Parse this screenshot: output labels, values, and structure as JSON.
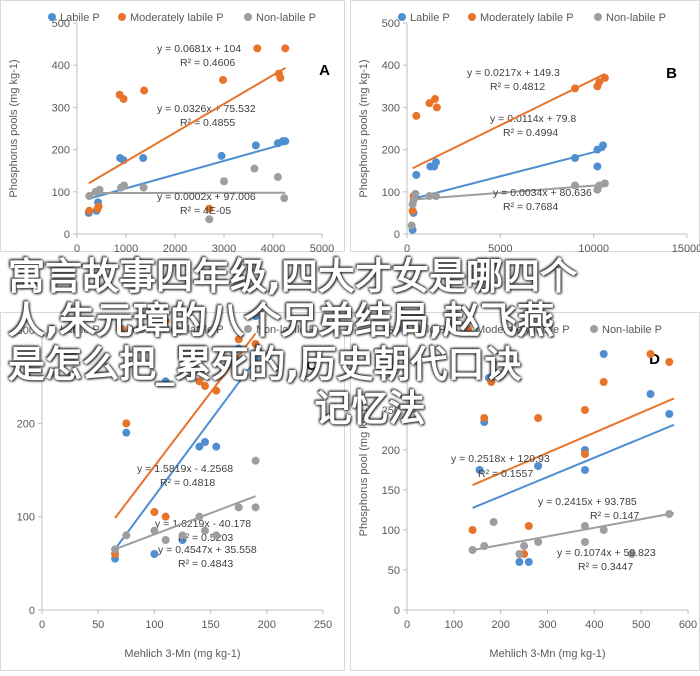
{
  "colors": {
    "labile": "#4f8fd1",
    "moderately": "#e8742b",
    "nonlabile": "#9e9e9e",
    "axis": "#bfbfbf",
    "text": "#595959"
  },
  "legend": [
    "Labile P",
    "Moderately labile P",
    "Non-labile P"
  ],
  "overlay": {
    "lines": [
      "寓言故事四年级,四大才女是哪四个",
      "人,朱元璋的八个兄弟结局,赵飞燕",
      "是怎么把_累死的,历史朝代口诀",
      "记忆法"
    ]
  },
  "chart_data": [
    {
      "type": "scatter",
      "panel_label": "A",
      "xlabel": "",
      "ylabel": "Phosphorus pools (mg kg-1)",
      "xlim": [
        0,
        5000
      ],
      "ylim": [
        0,
        500
      ],
      "xticks": [
        "0",
        "1000",
        "2000",
        "3000",
        "4000",
        "5000"
      ],
      "yticks": [
        "0",
        "100",
        "200",
        "300",
        "400",
        "500"
      ],
      "series": [
        {
          "name": "Labile P",
          "points": [
            [
              240,
              50
            ],
            [
              400,
              55
            ],
            [
              430,
              75
            ],
            [
              880,
              180
            ],
            [
              950,
              175
            ],
            [
              1350,
              180
            ],
            [
              2950,
              185
            ],
            [
              3650,
              210
            ],
            [
              4100,
              215
            ],
            [
              4200,
              220
            ],
            [
              4250,
              220
            ]
          ],
          "fit": {
            "slope": 0.0326,
            "intercept": 75.532,
            "x": [
              240,
              4250
            ],
            "eq": "y = 0.0326x + 75.532",
            "r2": "R² = 0.4855"
          }
        },
        {
          "name": "Moderately labile P",
          "points": [
            [
              250,
              55
            ],
            [
              420,
              60
            ],
            [
              440,
              65
            ],
            [
              870,
              330
            ],
            [
              950,
              320
            ],
            [
              1370,
              340
            ],
            [
              2700,
              60
            ],
            [
              2980,
              365
            ],
            [
              3680,
              440
            ],
            [
              4120,
              380
            ],
            [
              4150,
              370
            ],
            [
              4250,
              440
            ]
          ],
          "fit": {
            "slope": 0.0681,
            "intercept": 104,
            "x": [
              240,
              4250
            ],
            "eq": "y = 0.0681x + 104",
            "r2": "R² = 0.4606"
          }
        },
        {
          "name": "Non-labile P",
          "points": [
            [
              250,
              90
            ],
            [
              380,
              100
            ],
            [
              430,
              100
            ],
            [
              460,
              105
            ],
            [
              900,
              110
            ],
            [
              960,
              115
            ],
            [
              1360,
              110
            ],
            [
              2700,
              35
            ],
            [
              3000,
              125
            ],
            [
              3620,
              155
            ],
            [
              4100,
              135
            ],
            [
              4230,
              85
            ]
          ],
          "fit": {
            "slope": 0.0002,
            "intercept": 97.006,
            "x": [
              240,
              4250
            ],
            "eq": "y = 0.0002x + 97.006",
            "r2": "R² = 4E-05"
          }
        }
      ]
    },
    {
      "type": "scatter",
      "panel_label": "B",
      "xlabel": "",
      "ylabel": "Phosphorus pools (mg kg-1)",
      "xlim": [
        0,
        15000
      ],
      "ylim": [
        0,
        500
      ],
      "xticks": [
        "0",
        "5000",
        "10000",
        "15000"
      ],
      "yticks": [
        "0",
        "100",
        "200",
        "300",
        "400",
        "500"
      ],
      "series": [
        {
          "name": "Labile P",
          "points": [
            [
              300,
              10
            ],
            [
              350,
              50
            ],
            [
              500,
              140
            ],
            [
              1250,
              160
            ],
            [
              1450,
              160
            ],
            [
              1550,
              170
            ],
            [
              9000,
              180
            ],
            [
              10200,
              160
            ],
            [
              10200,
              200
            ],
            [
              10500,
              210
            ]
          ],
          "fit": {
            "slope": 0.0114,
            "intercept": 79.8,
            "x": [
              300,
              10600
            ],
            "eq": "y = 0.0114x + 79.8",
            "r2": "R² = 0.4994"
          }
        },
        {
          "name": "Moderately labile P",
          "points": [
            [
              300,
              55
            ],
            [
              350,
              90
            ],
            [
              500,
              280
            ],
            [
              1200,
              310
            ],
            [
              1500,
              320
            ],
            [
              1600,
              300
            ],
            [
              9000,
              345
            ],
            [
              10200,
              350
            ],
            [
              10300,
              360
            ],
            [
              10600,
              370
            ]
          ],
          "fit": {
            "slope": 0.0217,
            "intercept": 149.3,
            "x": [
              300,
              10600
            ],
            "eq": "y = 0.0217x + 149.3",
            "r2": "R² = 0.4812"
          }
        },
        {
          "name": "Non-labile P",
          "points": [
            [
              250,
              20
            ],
            [
              300,
              70
            ],
            [
              350,
              80
            ],
            [
              450,
              95
            ],
            [
              1200,
              90
            ],
            [
              1550,
              90
            ],
            [
              9000,
              115
            ],
            [
              10200,
              105
            ],
            [
              10300,
              115
            ],
            [
              10600,
              120
            ]
          ],
          "fit": {
            "slope": 0.0034,
            "intercept": 80.636,
            "x": [
              250,
              10600
            ],
            "eq": "y = 0.0034x + 80.636",
            "r2": "R² = 0.7684"
          }
        }
      ]
    },
    {
      "type": "scatter",
      "panel_label": "C",
      "xlabel": "Mehlich 3-Mn (mg kg-1)",
      "ylabel": "Phosphorus pool (mg kg-1)",
      "xlim": [
        0,
        250
      ],
      "ylim": [
        0,
        300
      ],
      "xticks": [
        "0",
        "50",
        "100",
        "150",
        "200",
        "250"
      ],
      "yticks": [
        "0",
        "100",
        "200",
        "300"
      ],
      "series": [
        {
          "name": "Labile P",
          "points": [
            [
              65,
              55
            ],
            [
              75,
              190
            ],
            [
              100,
              60
            ],
            [
              110,
              245
            ],
            [
              125,
              75
            ],
            [
              140,
              175
            ],
            [
              145,
              180
            ],
            [
              155,
              175
            ],
            [
              175,
              280
            ],
            [
              190,
              270
            ],
            [
              190,
              315
            ]
          ],
          "fit": {
            "slope": 1.6219,
            "intercept": -40.178,
            "x": [
              65,
              190
            ],
            "eq": "y = 1.6219x - 40.178",
            "r2": "R² = 0.5203"
          }
        },
        {
          "name": "Moderately labile P",
          "points": [
            [
              65,
              60
            ],
            [
              75,
              200
            ],
            [
              100,
              105
            ],
            [
              110,
              310
            ],
            [
              110,
              100
            ],
            [
              140,
              245
            ],
            [
              145,
              240
            ],
            [
              155,
              235
            ],
            [
              175,
              290
            ],
            [
              190,
              285
            ],
            [
              190,
              320
            ]
          ],
          "fit": {
            "slope": 1.5819,
            "intercept": -4.2568,
            "x": [
              65,
              190
            ],
            "eq": "y = 1.5819x - 4.2568",
            "r2": "R² = 0.4818"
          }
        },
        {
          "name": "Non-labile P",
          "points": [
            [
              65,
              65
            ],
            [
              75,
              80
            ],
            [
              100,
              85
            ],
            [
              110,
              75
            ],
            [
              125,
              80
            ],
            [
              140,
              100
            ],
            [
              145,
              85
            ],
            [
              155,
              80
            ],
            [
              175,
              110
            ],
            [
              190,
              160
            ],
            [
              190,
              110
            ]
          ],
          "fit": {
            "slope": 0.4547,
            "intercept": 35.558,
            "x": [
              65,
              190
            ],
            "eq": "y = 0.4547x + 35.558",
            "r2": "R² = 0.4843"
          }
        }
      ]
    },
    {
      "type": "scatter",
      "panel_label": "D",
      "xlabel": "Mehlich 3-Mn (mg kg-1)",
      "ylabel": "Phosphorus pool (mg kg-1)",
      "xlim": [
        0,
        600
      ],
      "ylim": [
        0,
        350
      ],
      "xticks": [
        "0",
        "100",
        "200",
        "300",
        "400",
        "500",
        "600"
      ],
      "yticks": [
        "0",
        "50",
        "100",
        "150",
        "200",
        "250",
        "300",
        "350"
      ],
      "series": [
        {
          "name": "Labile P",
          "points": [
            [
              155,
              175
            ],
            [
              165,
              235
            ],
            [
              175,
              290
            ],
            [
              240,
              60
            ],
            [
              260,
              60
            ],
            [
              280,
              180
            ],
            [
              380,
              175
            ],
            [
              380,
              200
            ],
            [
              420,
              320
            ],
            [
              520,
              270
            ],
            [
              560,
              245
            ]
          ],
          "fit": {
            "slope": 0.2415,
            "intercept": 93.785,
            "x": [
              140,
              570
            ],
            "eq": "y = 0.2415x + 93.785",
            "r2": "R² = 0.147"
          }
        },
        {
          "name": "Moderately labile P",
          "points": [
            [
              140,
              100
            ],
            [
              165,
              240
            ],
            [
              180,
              285
            ],
            [
              250,
              70
            ],
            [
              260,
              105
            ],
            [
              280,
              240
            ],
            [
              380,
              250
            ],
            [
              380,
              195
            ],
            [
              420,
              285
            ],
            [
              520,
              320
            ],
            [
              560,
              310
            ]
          ],
          "fit": {
            "slope": 0.2518,
            "intercept": 120.93,
            "x": [
              140,
              570
            ],
            "eq": "y = 0.2518x + 120.93",
            "r2": "R² = 0.1557"
          }
        },
        {
          "name": "Non-labile P",
          "points": [
            [
              140,
              75
            ],
            [
              165,
              80
            ],
            [
              185,
              110
            ],
            [
              240,
              70
            ],
            [
              250,
              80
            ],
            [
              280,
              85
            ],
            [
              380,
              85
            ],
            [
              380,
              105
            ],
            [
              420,
              100
            ],
            [
              480,
              70
            ],
            [
              560,
              120
            ]
          ],
          "fit": {
            "slope": 0.1074,
            "intercept": 59.823,
            "x": [
              140,
              570
            ],
            "eq": "y = 0.1074x + 59.823",
            "r2": "R² = 0.3447"
          }
        }
      ]
    }
  ]
}
